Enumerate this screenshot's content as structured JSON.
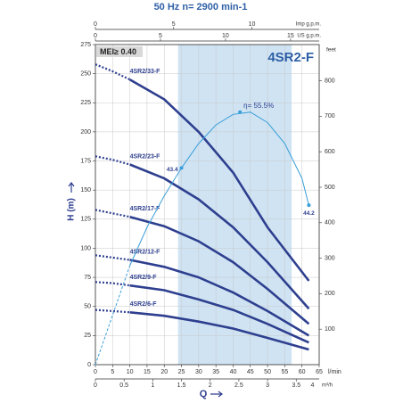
{
  "chart_data": {
    "type": "line",
    "title": "50 Hz   n= 2900 min-1",
    "subtitle": "4SR2-F",
    "badge": "MEI≥ 0.40",
    "ylabel": "H (m)",
    "y2label": "feet",
    "xlabel": "Q",
    "xunit": "l/min",
    "x2unit": "m³/h",
    "x3unit": "US g.p.m.",
    "x4unit": "Imp g.p.m.",
    "xlim": [
      0,
      65
    ],
    "xticks": [
      0,
      5,
      10,
      15,
      20,
      25,
      30,
      35,
      40,
      45,
      50,
      55,
      60,
      65
    ],
    "ylim": [
      0,
      275
    ],
    "yticks": [
      0,
      25,
      50,
      75,
      100,
      125,
      150,
      175,
      200,
      225,
      250,
      275
    ],
    "y2lim": [
      0,
      902
    ],
    "y2ticks": [
      100,
      200,
      300,
      400,
      500,
      600,
      700,
      800
    ],
    "x2lim": [
      0,
      3.9
    ],
    "x2ticks": [
      0,
      0.5,
      1,
      1.5,
      2,
      2.5,
      3,
      3.5,
      4
    ],
    "x3lim": [
      0,
      17.2
    ],
    "x3ticks": [
      0,
      5,
      10,
      15
    ],
    "x4lim": [
      0,
      14.3
    ],
    "x4ticks": [
      0,
      5,
      10
    ],
    "grid": true,
    "highlight_xrange": [
      24,
      57
    ],
    "highlight_color": "#cfe3f3",
    "extrapolated_xlim": [
      0,
      10
    ],
    "x": [
      0,
      5,
      10,
      20,
      30,
      40,
      50,
      62
    ],
    "series": [
      {
        "name": "4SR2/33-F",
        "color": "#2e3f8f",
        "values": [
          258,
          252,
          245,
          228,
          200,
          165,
          118,
          72
        ]
      },
      {
        "name": "4SR2/23-F",
        "color": "#2e3f8f",
        "values": [
          179,
          176,
          172,
          160,
          142,
          118,
          88,
          48
        ]
      },
      {
        "name": "4SR2/17-F",
        "color": "#2e3f8f",
        "values": [
          133,
          130,
          127,
          119,
          106,
          88,
          65,
          35
        ]
      },
      {
        "name": "4SR2/12-F",
        "color": "#2e3f8f",
        "values": [
          94,
          92,
          90,
          84,
          75,
          62,
          46,
          25
        ]
      },
      {
        "name": "4SR2/9-F",
        "color": "#2e3f8f",
        "values": [
          71,
          70,
          68,
          64,
          56,
          47,
          35,
          19
        ]
      },
      {
        "name": "4SR2/6-F",
        "color": "#2e3f8f",
        "values": [
          47,
          46,
          45,
          42,
          37,
          31,
          23,
          13
        ]
      }
    ],
    "efficiency": {
      "color": "#3a9fd8",
      "x": [
        0,
        10,
        15,
        20,
        25,
        30,
        35,
        40,
        45,
        50,
        55,
        60,
        62
      ],
      "values": [
        0,
        85,
        118,
        145,
        169,
        190,
        206,
        215,
        217,
        208,
        190,
        160,
        137
      ],
      "points": [
        {
          "x": 25,
          "y": 169,
          "label": "43.4"
        },
        {
          "x": 42,
          "y": 217,
          "label": "η= 55.5%"
        },
        {
          "x": 62,
          "y": 137,
          "label": "44.2"
        }
      ]
    }
  }
}
